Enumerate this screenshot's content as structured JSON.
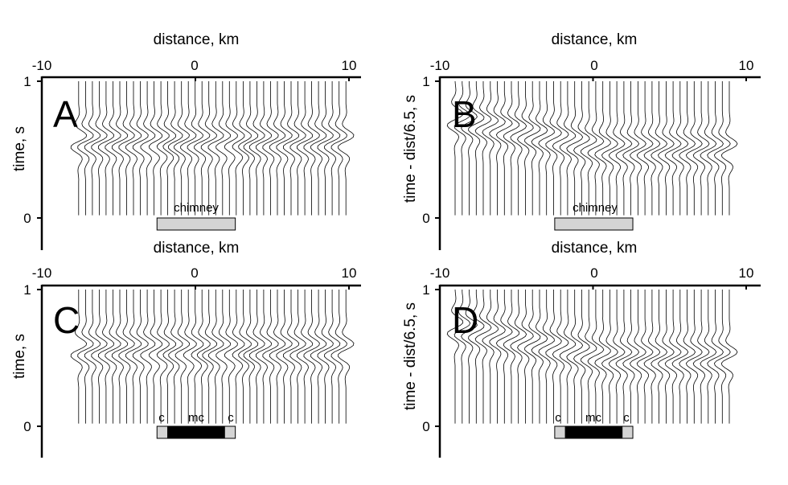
{
  "chart_data": [
    {
      "panel": "A",
      "type": "line",
      "panel_letter": "A",
      "xlabel": "distance, km",
      "ylabel": "time, s",
      "xticks": [
        "-10",
        "0",
        "10"
      ],
      "yticks": [
        "1",
        "0"
      ],
      "xlim": [
        -10,
        10
      ],
      "ylim": [
        0,
        1
      ],
      "content": "synthetic seismic wiggle traces",
      "trace_x_range": [
        -7.6,
        9.8
      ],
      "arrival_time": 0.56,
      "arrival_kink_at": [
        -2.2,
        2.7
      ],
      "bar_label": "chimney",
      "bar_range": [
        -2.5,
        2.6
      ],
      "bar_segments": [
        {
          "from": -2.5,
          "to": 2.6,
          "kind": "chimney"
        }
      ]
    },
    {
      "panel": "B",
      "type": "line",
      "panel_letter": "B",
      "xlabel": "distance, km",
      "ylabel": "time - dist/6.5, s",
      "xticks": [
        "-10",
        "0",
        "10"
      ],
      "yticks": [
        "1",
        "0"
      ],
      "xlim": [
        -10,
        10
      ],
      "ylim": [
        0,
        1
      ],
      "content": "synthetic seismic wiggle traces, reduced time",
      "trace_x_range": [
        -9.0,
        8.9
      ],
      "arrival_time": 0.56,
      "bar_label": "chimney",
      "bar_range": [
        -2.5,
        2.6
      ],
      "bar_segments": [
        {
          "from": -2.5,
          "to": 2.6,
          "kind": "chimney"
        }
      ]
    },
    {
      "panel": "C",
      "type": "line",
      "panel_letter": "C",
      "xlabel": "distance, km",
      "ylabel": "time, s",
      "xticks": [
        "-10",
        "0",
        "10"
      ],
      "yticks": [
        "1",
        "0"
      ],
      "xlim": [
        -10,
        10
      ],
      "ylim": [
        0,
        1
      ],
      "content": "synthetic seismic wiggle traces",
      "trace_x_range": [
        -7.6,
        9.8
      ],
      "arrival_time": 0.56,
      "arrival_kink_at": [
        -2.2,
        0.0,
        2.7
      ],
      "bar_range": [
        -2.5,
        2.6
      ],
      "bar_segments": [
        {
          "from": -2.5,
          "to": -1.8,
          "kind": "c",
          "label": "c"
        },
        {
          "from": -1.8,
          "to": 1.9,
          "kind": "mc",
          "label": "mc"
        },
        {
          "from": 1.9,
          "to": 2.6,
          "kind": "c",
          "label": "c"
        }
      ]
    },
    {
      "panel": "D",
      "type": "line",
      "panel_letter": "D",
      "xlabel": "distance, km",
      "ylabel": "time - dist/6.5, s",
      "xticks": [
        "-10",
        "0",
        "10"
      ],
      "yticks": [
        "1",
        "0"
      ],
      "xlim": [
        -10,
        10
      ],
      "ylim": [
        0,
        1
      ],
      "content": "synthetic seismic wiggle traces, reduced time",
      "trace_x_range": [
        -9.0,
        8.9
      ],
      "arrival_time": 0.56,
      "bar_range": [
        -2.5,
        2.6
      ],
      "bar_segments": [
        {
          "from": -2.5,
          "to": -1.8,
          "kind": "c",
          "label": "c"
        },
        {
          "from": -1.8,
          "to": 1.9,
          "kind": "mc",
          "label": "mc"
        },
        {
          "from": 1.9,
          "to": 2.6,
          "kind": "c",
          "label": "c"
        }
      ]
    }
  ],
  "colors": {
    "ink": "#000000",
    "chimney_fill": "#d4d4d4",
    "mc_fill": "#000000",
    "background": "#ffffff"
  }
}
